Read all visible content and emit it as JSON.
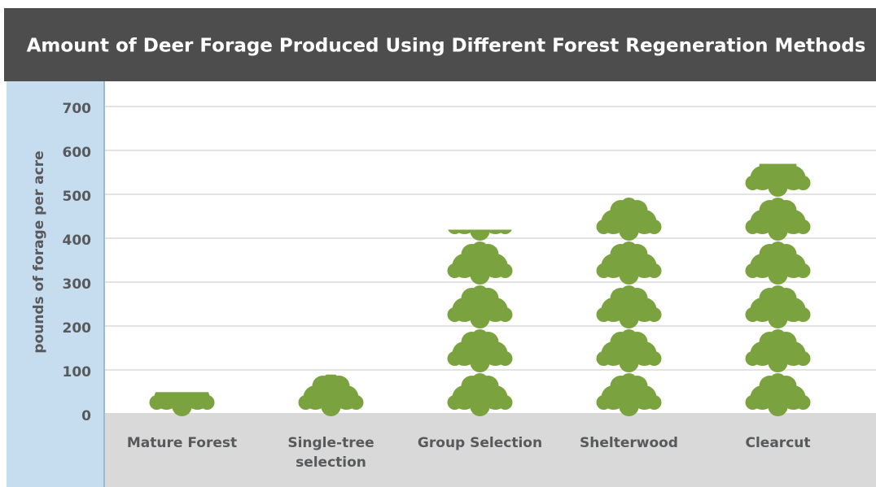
{
  "chart_data": {
    "type": "pictograph-bar",
    "title": "Amount of Deer Forage Produced Using Different Forest Regeneration Methods",
    "y_label": "pounds of forage per acre",
    "categories": [
      "Mature Forest",
      "Single-tree selection",
      "Group Selection",
      "Shelterwood",
      "Clearcut"
    ],
    "values": [
      55,
      95,
      425,
      500,
      575
    ],
    "color": "#7aa23f",
    "ylim": [
      0,
      700
    ],
    "yticks": [
      0,
      100,
      200,
      300,
      400,
      500,
      600,
      700
    ],
    "grid": true
  }
}
